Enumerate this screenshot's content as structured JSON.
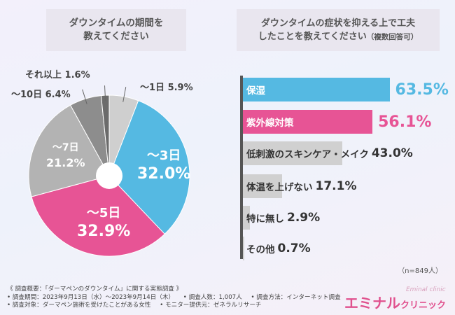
{
  "left_title": [
    "ダウンタイムの期間を",
    "教えてください"
  ],
  "right_title": {
    "line1": "ダウンタイムの症状を抑える上で工夫",
    "line2": "したことを教えてください",
    "line2_sub": "（複数回答可）"
  },
  "chart_data": [
    {
      "type": "pie",
      "title": "ダウンタイムの期間を教えてください",
      "slices": [
        {
          "label": "～1日",
          "value": 5.9,
          "color": "#cfcfcf"
        },
        {
          "label": "～3日",
          "value": 32.0,
          "color": "#55b9e2"
        },
        {
          "label": "～5日",
          "value": 32.9,
          "color": "#e75495"
        },
        {
          "label": "～7日",
          "value": 21.2,
          "color": "#b3b3b3"
        },
        {
          "label": "～10日",
          "value": 6.4,
          "color": "#8d8d8d"
        },
        {
          "label": "それ以上",
          "value": 1.6,
          "color": "#6b6b6b"
        }
      ],
      "display": {
        "s0": {
          "range": "～1日",
          "pct": "5.9%"
        },
        "s1": {
          "range": "～3日",
          "pct": "32.0%"
        },
        "s2": {
          "range": "～5日",
          "pct": "32.9%"
        },
        "s3": {
          "range": "～7日",
          "pct": "21.2%"
        },
        "s4": {
          "range": "～10日",
          "pct": "6.4%"
        },
        "s5": {
          "range": "それ以上",
          "pct": "1.6%"
        }
      }
    },
    {
      "type": "bar",
      "orientation": "horizontal",
      "title": "ダウンタイムの症状を抑える上で工夫したことを教えてください（複数回答可）",
      "xlim": [
        0,
        100
      ],
      "categories": [
        "保湿",
        "紫外線対策",
        "低刺激のスキンケア・メイク",
        "体温を上げない",
        "特に無し",
        "その他"
      ],
      "values": [
        63.5,
        56.1,
        43.0,
        17.1,
        2.9,
        0.7
      ],
      "colors": [
        "#55b9e2",
        "#e75495",
        "#d0d0d0",
        "#d0d0d0",
        "#d0d0d0",
        "#d0d0d0"
      ],
      "value_labels": [
        "63.5%",
        "56.1%",
        "43.0%",
        "17.1%",
        "2.9%",
        "0.7%"
      ]
    }
  ],
  "sample_size": "（n=849人）",
  "footer": {
    "overview": "《 調査概要：「ダーマペンのダウンタイム」に関する実態調査 》",
    "period": "• 調査期間：2023年9月13日（水）～2023年9月14日（木）",
    "count": "• 調査人数：1,007人",
    "method": "• 調査方法：インターネット調査",
    "target": "• 調査対象：ダーマペン施術を受けたことがある女性",
    "provider": "• モニター提供元：ゼネラルリサーチ"
  },
  "logo": {
    "main": "エミナル",
    "sub": "クリニック",
    "en": "Eminal clinic"
  },
  "colors": {
    "blue": "#55b9e2",
    "pink": "#e75495",
    "gray_bar": "#d0d0d0"
  }
}
